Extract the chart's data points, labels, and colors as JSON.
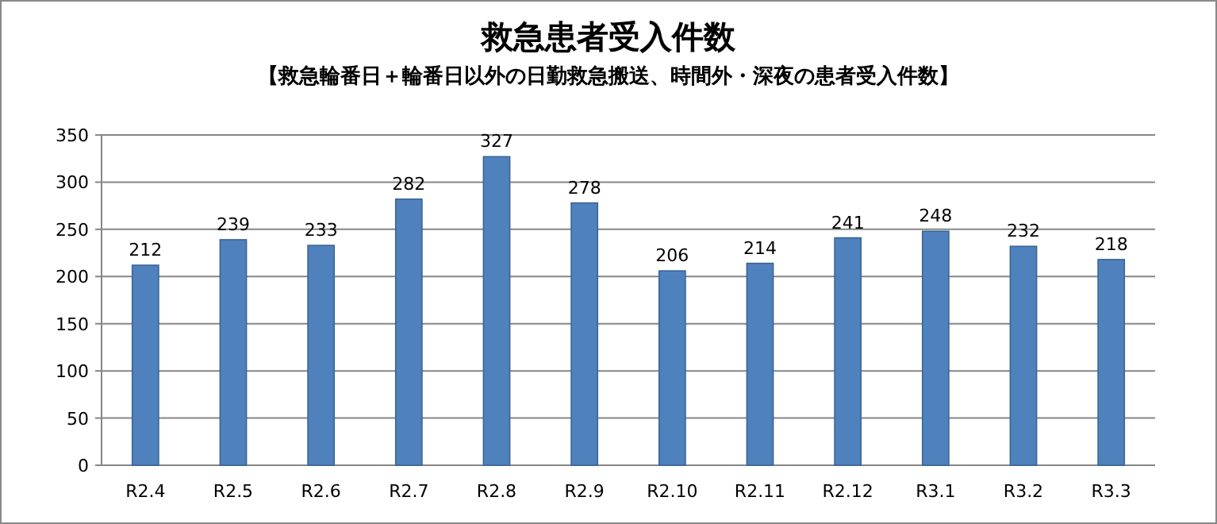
{
  "chart_data": {
    "type": "bar",
    "title": "救急患者受入件数",
    "subtitle": "【救急輪番日＋輪番日以外の日勤救急搬送、時間外・深夜の患者受入件数】",
    "categories": [
      "R2.4",
      "R2.5",
      "R2.6",
      "R2.7",
      "R2.8",
      "R2.9",
      "R2.10",
      "R2.11",
      "R2.12",
      "R3.1",
      "R3.2",
      "R3.3"
    ],
    "values": [
      212,
      239,
      233,
      282,
      327,
      278,
      206,
      214,
      241,
      248,
      232,
      218
    ],
    "color": "#4f81bd",
    "ylim": [
      0,
      350
    ],
    "yticks": [
      0,
      50,
      100,
      150,
      200,
      250,
      300,
      350
    ],
    "grid": "y",
    "data_labels": true
  }
}
